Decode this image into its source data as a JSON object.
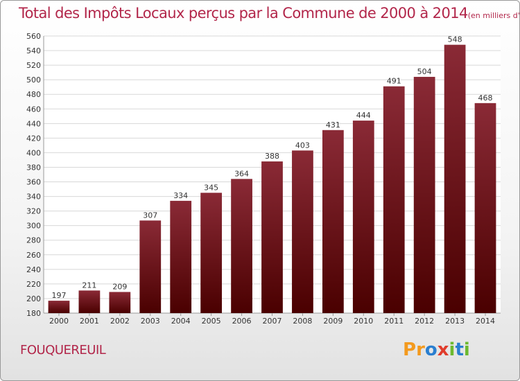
{
  "title": "Total des Impôts Locaux perçus par la Commune de 2000 à 2014",
  "title_unit": "(en milliers d'€)",
  "commune": "FOUQUEREUIL",
  "logo": {
    "letters": [
      "P",
      "r",
      "o",
      "x",
      "i",
      "t",
      "i"
    ],
    "colors": [
      "#f39a1e",
      "#f39a1e",
      "#2a7fd0",
      "#e03c2c",
      "#6cb92f",
      "#2a7fd0",
      "#6cb92f"
    ]
  },
  "colors": {
    "bar_top": "#8a2a36",
    "bar_bottom": "#4a0000",
    "text": "#b2264a"
  },
  "chart_data": {
    "type": "bar",
    "categories": [
      "2000",
      "2001",
      "2002",
      "2003",
      "2004",
      "2005",
      "2006",
      "2007",
      "2008",
      "2009",
      "2010",
      "2011",
      "2012",
      "2013",
      "2014"
    ],
    "values": [
      197,
      211,
      209,
      307,
      334,
      345,
      364,
      388,
      403,
      431,
      444,
      491,
      504,
      548,
      468
    ],
    "ylim": [
      180,
      560
    ],
    "yticks": [
      180,
      200,
      220,
      240,
      260,
      280,
      300,
      320,
      340,
      360,
      380,
      400,
      420,
      440,
      460,
      480,
      500,
      520,
      540,
      560
    ],
    "grid": true,
    "legend": "none"
  }
}
